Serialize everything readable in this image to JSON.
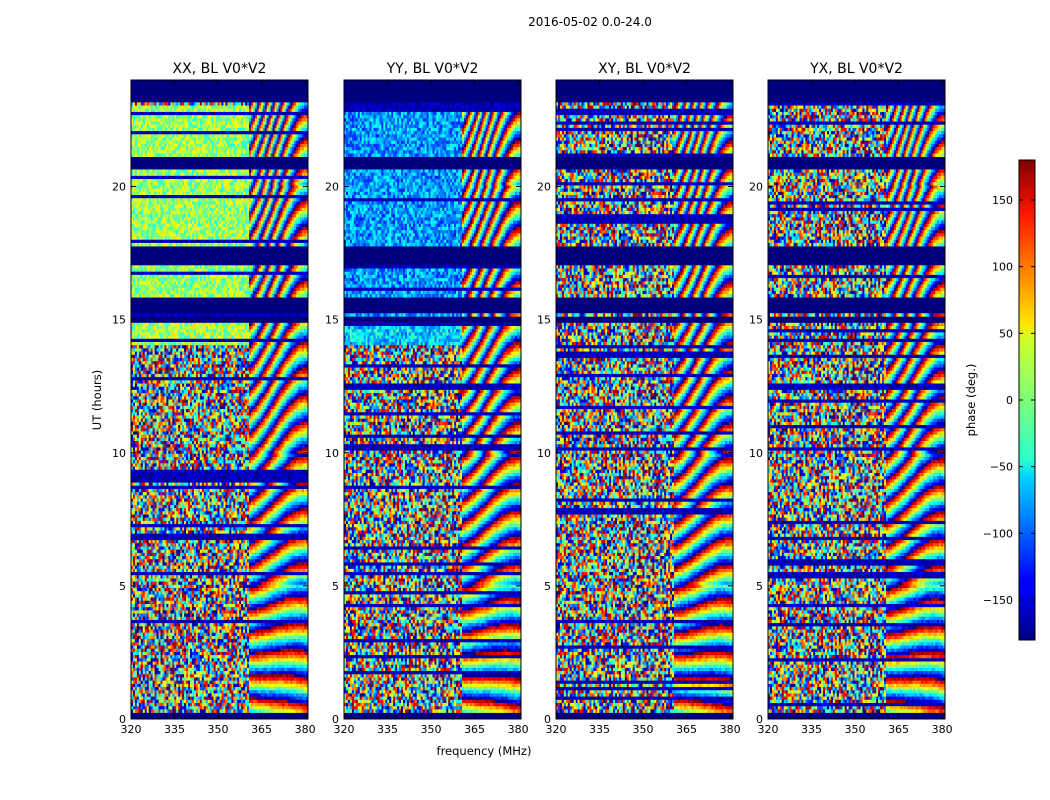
{
  "chart_data": {
    "type": "heatmap",
    "suptitle": "2016-05-02 0.0-24.0",
    "xlabel": "frequency (MHz)",
    "ylabel": "UT (hours)",
    "xlim": [
      320,
      381
    ],
    "ylim": [
      0,
      24
    ],
    "xticks": [
      320,
      335,
      350,
      365,
      380
    ],
    "yticks": [
      0,
      5,
      10,
      15,
      20
    ],
    "panels": [
      {
        "title": "XX, BL V0*V2",
        "flat_value": 10,
        "sky_value": 15
      },
      {
        "title": "YY, BL V0*V2",
        "flat_value": -80,
        "sky_value": -60
      },
      {
        "title": "XY, BL V0*V2",
        "flat_value": null,
        "sky_value": null
      },
      {
        "title": "YX, BL V0*V2",
        "flat_value": null,
        "sky_value": null
      }
    ],
    "flagged_ut_ranges": [
      [
        0.0,
        0.2
      ],
      [
        5.95,
        6.05
      ],
      [
        14.85,
        15.1
      ],
      [
        15.25,
        15.8
      ],
      [
        17.1,
        17.8
      ],
      [
        20.7,
        21.1
      ],
      [
        23.2,
        24.0
      ]
    ],
    "colorbar": {
      "label": "phase (deg.)",
      "range": [
        -180,
        180
      ],
      "ticks": [
        -150,
        -100,
        -50,
        0,
        50,
        100,
        150
      ],
      "colormap": "jet"
    },
    "colors": {
      "flagged": "#00007f",
      "frame": "#000000"
    }
  }
}
